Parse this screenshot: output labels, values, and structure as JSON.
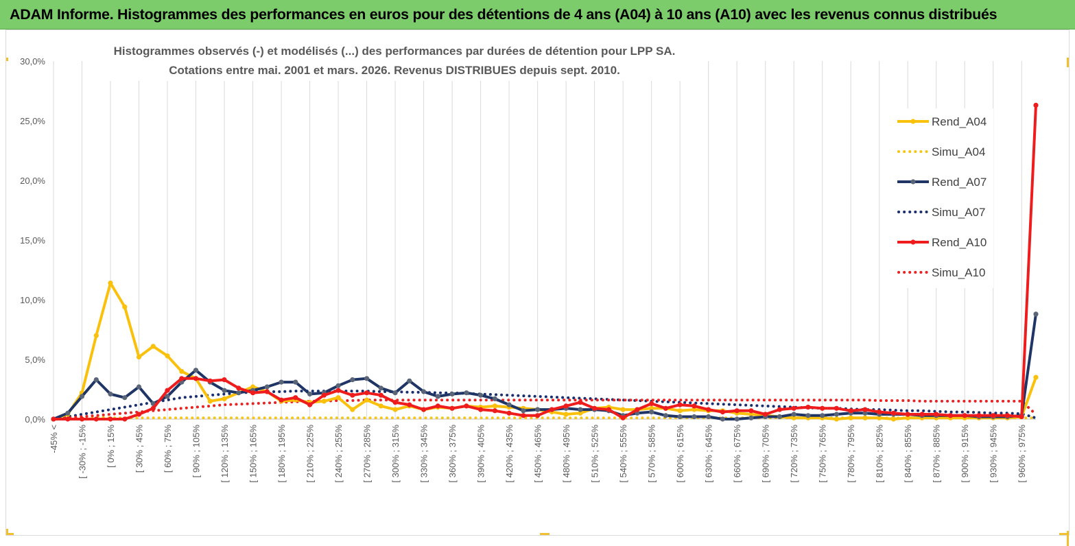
{
  "banner": {
    "title": "ADAM Informe. Histogrammes des performances en euros pour des détentions de 4 ans (A04) à 10 ans (A10) avec les revenus connus distribués"
  },
  "colors": {
    "banner_bg": "#7ccc6c",
    "rend_a04": "#fac10c",
    "simu_a04": "#f5c518",
    "rend_a07": "#1f3566",
    "simu_a07": "#1a2f6e",
    "rend_a10": "#ee1c1c",
    "simu_a10": "#e82323",
    "grid": "#d9d9d9",
    "axis_text": "#595959",
    "marker_a07": "#5a6578"
  },
  "chart_data": {
    "type": "line",
    "title": "Histogrammes observés (-) et modélisés (...) des performances par durées de détention pour LPP SA.",
    "subtitle": "Cotations entre mai. 2001 et mars. 2026. Revenus DISTRIBUES depuis sept. 2010.",
    "xlabel": "",
    "ylabel": "",
    "ylim": [
      0,
      30
    ],
    "y_ticks": [
      "0,0%",
      "5,0%",
      "10,0%",
      "15,0%",
      "20,0%",
      "25,0%",
      "30,0%"
    ],
    "grid": "vertical",
    "legend_position": "right",
    "x_tick_labels": [
      "-45% <",
      "[ -30% ; -15%",
      "[ 0% ; 15%",
      "[ 30% ; 45%",
      "[ 60% ; 75%",
      "[ 90% ; 105%",
      "[ 120% ; 135%",
      "[ 150% ; 165%",
      "[ 180% ; 195%",
      "[ 210% ; 225%",
      "[ 240% ; 255%",
      "[ 270% ; 285%",
      "[ 300% ; 315%",
      "[ 330% ; 345%",
      "[ 360% ; 375%",
      "[ 390% ; 405%",
      "[ 420% ; 435%",
      "[ 450% ; 465%",
      "[ 480% ; 495%",
      "[ 510% ; 525%",
      "[ 540% ; 555%",
      "[ 570% ; 585%",
      "[ 600% ; 615%",
      "[ 630% ; 645%",
      "[ 660% ; 675%",
      "[ 690% ; 705%",
      "[ 720% ; 735%",
      "[ 750% ; 765%",
      "[ 780% ; 795%",
      "[ 810% ; 825%",
      "[ 840% ; 855%",
      "[ 870% ; 885%",
      "[ 900% ; 915%",
      "[ 930% ; 945%",
      "[ 960% ; 975%"
    ],
    "n_points": 70,
    "series": [
      {
        "name": "Rend_A04",
        "style": "solid",
        "color": "#fac10c",
        "values": [
          0,
          0.4,
          2.2,
          7.0,
          11.4,
          9.4,
          5.2,
          6.1,
          5.3,
          4.0,
          3.4,
          1.5,
          1.7,
          2.2,
          2.7,
          2.3,
          1.5,
          1.6,
          1.4,
          1.5,
          1.8,
          0.8,
          1.6,
          1.1,
          0.8,
          1.1,
          0.8,
          1.0,
          0.9,
          1.1,
          1.0,
          1.1,
          1.0,
          0.9,
          0.8,
          0.6,
          0.4,
          0.5,
          0.9,
          1.0,
          0.8,
          0.8,
          0.9,
          0.9,
          0.7,
          0.8,
          0.7,
          0.7,
          0.5,
          0.4,
          0.3,
          0.2,
          0.1,
          0.1,
          0.1,
          0.0,
          0.1,
          0.1,
          0.1,
          0.0,
          0.1,
          0.1,
          0.1,
          0.1,
          0.1,
          0.1,
          0.1,
          0.1,
          0.2,
          3.5
        ]
      },
      {
        "name": "Simu_A04",
        "style": "dotted",
        "color": "#f5c518",
        "values": [
          0,
          0.1,
          0.2,
          0.2,
          0.1,
          0.1,
          0.1,
          0.1,
          0.1,
          0.1,
          0.1,
          0.1,
          0.1,
          0.1,
          0.1,
          0.1,
          0.1,
          0.1,
          0.1,
          0.1,
          0.1,
          0.1,
          0.1,
          0.1,
          0.1,
          0.1,
          0.1,
          0.1,
          0.1,
          0.1,
          0.1,
          0.1,
          0.1,
          0.1,
          0.1,
          0.1,
          0.1,
          0.1,
          0.1,
          0.1,
          0.1,
          0.1,
          0.1,
          0.1,
          0.1,
          0.1,
          0.1,
          0.1,
          0.1,
          0.1,
          0.1,
          0.1,
          0.1,
          0.1,
          0.1,
          0.1,
          0.1,
          0.1,
          0.1,
          0.1,
          0.1,
          0.1,
          0.1,
          0.1,
          0.1,
          0.1,
          0.1,
          0.1,
          0.1,
          0.1
        ]
      },
      {
        "name": "Rend_A07",
        "style": "solid",
        "color": "#1f3566",
        "values": [
          0,
          0.5,
          1.9,
          3.3,
          2.1,
          1.8,
          2.7,
          1.3,
          1.9,
          3.1,
          4.1,
          3.1,
          2.4,
          2.2,
          2.4,
          2.7,
          3.1,
          3.1,
          2.1,
          2.2,
          2.8,
          3.3,
          3.4,
          2.6,
          2.2,
          3.2,
          2.3,
          1.9,
          2.1,
          2.2,
          2.0,
          1.7,
          1.2,
          0.7,
          0.8,
          0.8,
          0.9,
          0.8,
          0.8,
          0.7,
          0.3,
          0.5,
          0.6,
          0.3,
          0.2,
          0.2,
          0.2,
          0.0,
          0.0,
          0.1,
          0.2,
          0.2,
          0.4,
          0.3,
          0.3,
          0.4,
          0.5,
          0.5,
          0.4,
          0.4,
          0.4,
          0.3,
          0.3,
          0.3,
          0.3,
          0.2,
          0.2,
          0.2,
          0.3,
          8.8
        ]
      },
      {
        "name": "Simu_A07",
        "style": "dotted",
        "color": "#1a2f6e",
        "values": [
          0,
          0.2,
          0.4,
          0.6,
          0.8,
          1.0,
          1.2,
          1.4,
          1.6,
          1.8,
          1.9,
          2.0,
          2.1,
          2.2,
          2.25,
          2.3,
          2.3,
          2.35,
          2.35,
          2.35,
          2.35,
          2.35,
          2.35,
          2.3,
          2.3,
          2.25,
          2.25,
          2.2,
          2.2,
          2.15,
          2.1,
          2.05,
          2.0,
          1.95,
          1.9,
          1.85,
          1.8,
          1.75,
          1.7,
          1.65,
          1.6,
          1.55,
          1.5,
          1.45,
          1.4,
          1.35,
          1.3,
          1.25,
          1.2,
          1.15,
          1.1,
          1.05,
          1.0,
          0.95,
          0.9,
          0.9,
          0.85,
          0.8,
          0.8,
          0.75,
          0.7,
          0.7,
          0.65,
          0.6,
          0.6,
          0.55,
          0.5,
          0.5,
          0.45,
          0.1
        ]
      },
      {
        "name": "Rend_A10",
        "style": "solid",
        "color": "#ee1c1c",
        "values": [
          0,
          0,
          0,
          0,
          0,
          0,
          0.4,
          0.9,
          2.4,
          3.4,
          3.4,
          3.2,
          3.3,
          2.6,
          2.2,
          2.3,
          1.6,
          1.8,
          1.2,
          2.0,
          2.4,
          2.0,
          2.2,
          2.0,
          1.4,
          1.2,
          0.8,
          1.1,
          0.9,
          1.1,
          0.8,
          0.7,
          0.5,
          0.3,
          0.3,
          0.8,
          1.1,
          1.4,
          0.9,
          0.8,
          0.1,
          0.8,
          1.3,
          0.9,
          1.2,
          1.1,
          0.8,
          0.6,
          0.7,
          0.7,
          0.4,
          0.8,
          0.9,
          1.0,
          0.9,
          0.9,
          0.7,
          0.8,
          0.6,
          0.5,
          0.4,
          0.4,
          0.4,
          0.3,
          0.3,
          0.3,
          0.3,
          0.3,
          0.2,
          26.3
        ]
      },
      {
        "name": "Simu_A10",
        "style": "dotted",
        "color": "#e82323",
        "values": [
          0,
          0.1,
          0.2,
          0.3,
          0.4,
          0.5,
          0.6,
          0.7,
          0.8,
          0.9,
          1.0,
          1.1,
          1.2,
          1.25,
          1.3,
          1.35,
          1.4,
          1.45,
          1.5,
          1.5,
          1.55,
          1.55,
          1.6,
          1.6,
          1.6,
          1.6,
          1.6,
          1.6,
          1.6,
          1.6,
          1.6,
          1.6,
          1.6,
          1.6,
          1.6,
          1.6,
          1.6,
          1.6,
          1.6,
          1.6,
          1.6,
          1.6,
          1.6,
          1.6,
          1.6,
          1.6,
          1.6,
          1.6,
          1.6,
          1.6,
          1.6,
          1.6,
          1.6,
          1.6,
          1.6,
          1.6,
          1.6,
          1.6,
          1.55,
          1.55,
          1.55,
          1.5,
          1.5,
          1.5,
          1.5,
          1.5,
          1.5,
          1.5,
          1.5,
          0.4
        ]
      }
    ]
  }
}
